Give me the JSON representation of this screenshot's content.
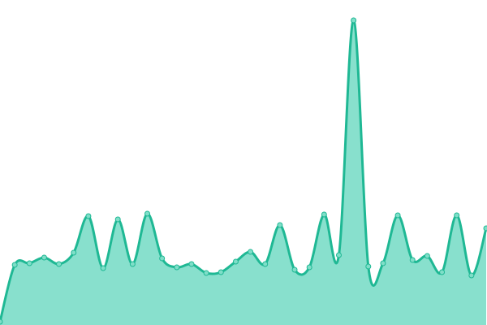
{
  "chart_data": {
    "type": "area",
    "values": [
      1,
      18.5,
      19,
      20.75,
      18.75,
      22.25,
      33.5,
      17.5,
      32.5,
      18.75,
      34.25,
      20.5,
      17.75,
      18.75,
      16,
      16.25,
      19.5,
      22.5,
      18.75,
      30.75,
      17,
      17.75,
      34,
      21.5,
      93.75,
      18,
      19,
      33.75,
      20,
      21.25,
      16.25,
      33.75,
      15.25,
      29.75
    ],
    "ylim": [
      0,
      100
    ],
    "color": "#1fb894",
    "area_color": "#88e0cd",
    "marker_color": "#7fdec8"
  }
}
